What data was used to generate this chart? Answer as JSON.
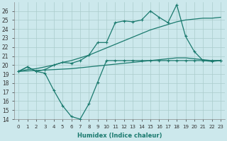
{
  "xlabel": "Humidex (Indice chaleur)",
  "background_color": "#cce8ec",
  "grid_color": "#b0d8dc",
  "line_color": "#1a7a6e",
  "xlim": [
    -0.5,
    23.5
  ],
  "ylim": [
    14,
    27
  ],
  "xticks": [
    0,
    1,
    2,
    3,
    4,
    5,
    6,
    7,
    8,
    9,
    10,
    11,
    12,
    13,
    14,
    15,
    16,
    17,
    18,
    19,
    20,
    21,
    22,
    23
  ],
  "yticks": [
    14,
    15,
    16,
    17,
    18,
    19,
    20,
    21,
    22,
    23,
    24,
    25,
    26
  ],
  "s_dip": [
    19.3,
    19.8,
    19.3,
    19.1,
    17.2,
    15.5,
    14.3,
    14.0,
    15.7,
    18.1,
    20.5,
    20.5,
    20.5,
    20.5,
    20.5,
    20.5,
    20.5,
    20.5,
    20.5,
    20.5,
    20.5,
    20.5,
    20.4,
    20.5
  ],
  "s_peak": [
    19.3,
    19.8,
    19.3,
    19.5,
    20.0,
    20.3,
    20.2,
    20.5,
    21.1,
    22.5,
    22.5,
    24.7,
    24.9,
    24.8,
    25.0,
    26.0,
    25.3,
    24.7,
    26.7,
    23.2,
    21.5,
    20.5,
    20.5,
    20.5
  ],
  "s_smooth1": [
    19.3,
    19.5,
    19.6,
    19.8,
    20.0,
    20.3,
    20.5,
    20.8,
    21.1,
    21.5,
    21.9,
    22.3,
    22.7,
    23.1,
    23.5,
    23.9,
    24.2,
    24.5,
    24.8,
    25.0,
    25.1,
    25.2,
    25.2,
    25.3
  ],
  "s_smooth2": [
    19.3,
    19.35,
    19.4,
    19.45,
    19.5,
    19.55,
    19.6,
    19.7,
    19.8,
    19.9,
    20.0,
    20.1,
    20.2,
    20.3,
    20.4,
    20.5,
    20.6,
    20.7,
    20.8,
    20.8,
    20.7,
    20.6,
    20.5,
    20.5
  ]
}
